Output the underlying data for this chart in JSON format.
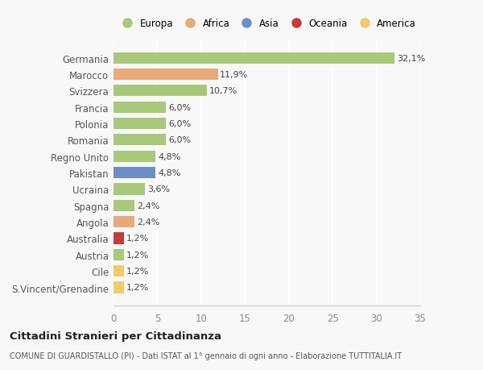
{
  "categories": [
    "S.Vincent/Grenadine",
    "Cile",
    "Austria",
    "Australia",
    "Angola",
    "Spagna",
    "Ucraina",
    "Pakistan",
    "Regno Unito",
    "Romania",
    "Polonia",
    "Francia",
    "Svizzera",
    "Marocco",
    "Germania"
  ],
  "values": [
    1.2,
    1.2,
    1.2,
    1.2,
    2.4,
    2.4,
    3.6,
    4.8,
    4.8,
    6.0,
    6.0,
    6.0,
    10.7,
    11.9,
    32.1
  ],
  "labels": [
    "1,2%",
    "1,2%",
    "1,2%",
    "1,2%",
    "2,4%",
    "2,4%",
    "3,6%",
    "4,8%",
    "4,8%",
    "6,0%",
    "6,0%",
    "6,0%",
    "10,7%",
    "11,9%",
    "32,1%"
  ],
  "colors": [
    "#f2ca6b",
    "#f2ca6b",
    "#a8c87a",
    "#c43c3c",
    "#e8a878",
    "#a8c87a",
    "#a8c87a",
    "#6b8ec8",
    "#a8c87a",
    "#a8c87a",
    "#a8c87a",
    "#a8c87a",
    "#a8c87a",
    "#e8a878",
    "#a8c87a"
  ],
  "legend_items": [
    {
      "label": "Europa",
      "color": "#a8c87a"
    },
    {
      "label": "Africa",
      "color": "#e8a878"
    },
    {
      "label": "Asia",
      "color": "#6b8ec8"
    },
    {
      "label": "Oceania",
      "color": "#c43c3c"
    },
    {
      "label": "America",
      "color": "#f2ca6b"
    }
  ],
  "title_bold": "Cittadini Stranieri per Cittadinanza",
  "subtitle": "COMUNE DI GUARDISTALLO (PI) - Dati ISTAT al 1° gennaio di ogni anno - Elaborazione TUTTITALIA.IT",
  "xlim": [
    0,
    35
  ],
  "xticks": [
    0,
    5,
    10,
    15,
    20,
    25,
    30,
    35
  ],
  "bg_color": "#f8f8f8",
  "plot_bg": "#f8f8f8",
  "grid_color": "#ffffff",
  "text_color": "#555555",
  "label_color": "#444444"
}
